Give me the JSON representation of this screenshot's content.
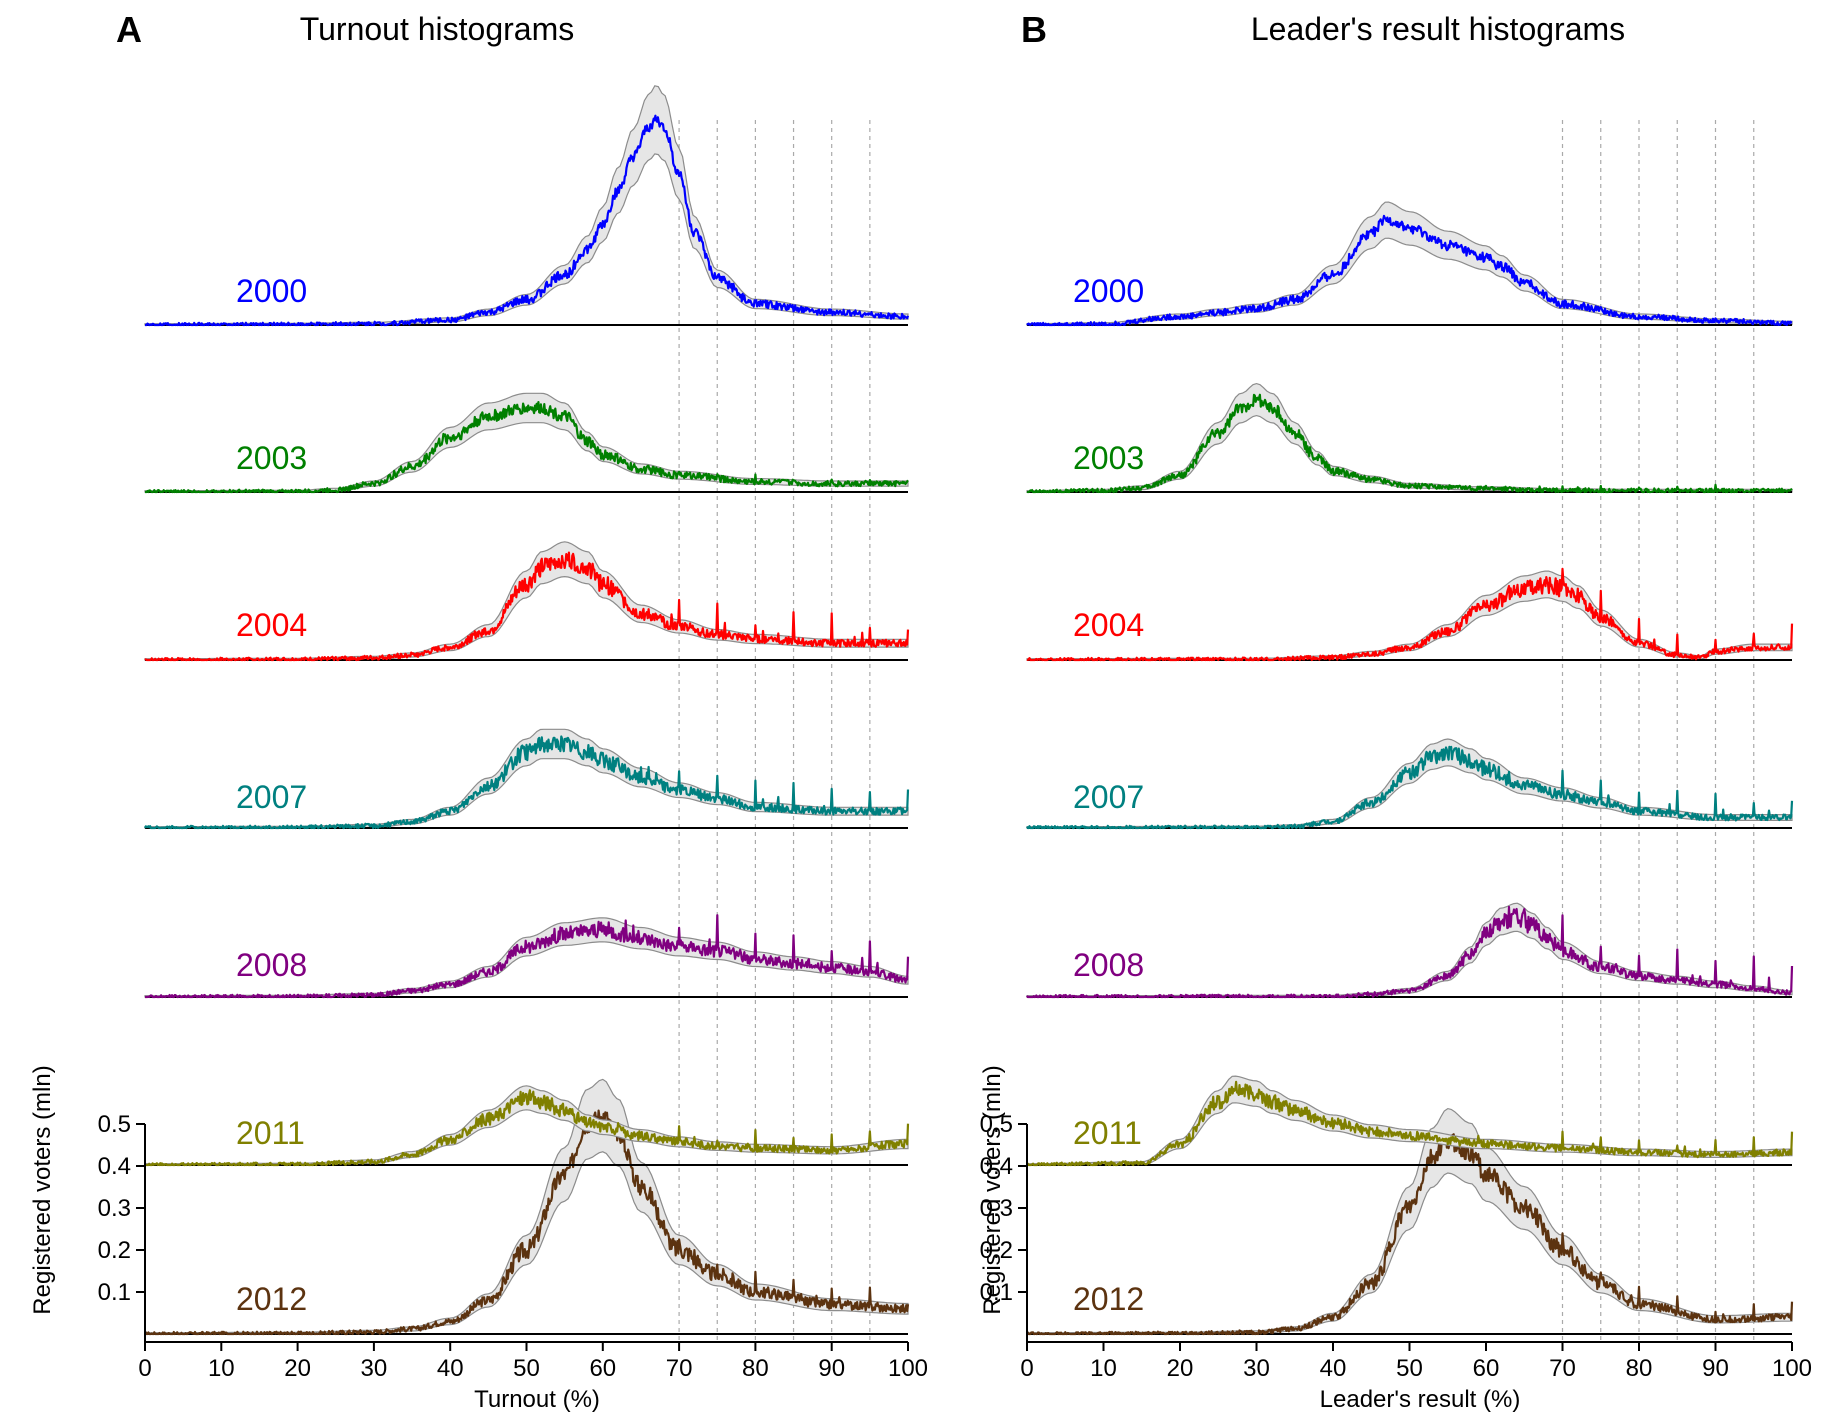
{
  "panels": [
    {
      "id": "A",
      "letter": "A",
      "title": "Turnout histograms",
      "xlabel": "Turnout (%)"
    },
    {
      "id": "B",
      "letter": "B",
      "title": "Leader's result histograms",
      "xlabel": "Leader's result (%)"
    }
  ],
  "ylabel": "Registered voters (mln)",
  "colors": {
    "2000": "#0000ff",
    "2003": "#008000",
    "2004": "#ff0000",
    "2007": "#008080",
    "2008": "#800080",
    "2011": "#808000",
    "2012": "#5c3310",
    "band_fill": "#e6e6e6",
    "band_edge": "#8c8c8c"
  },
  "chart_data": [
    {
      "type": "line",
      "panel": "A",
      "title": "Turnout histograms",
      "xlabel": "Turnout (%)",
      "ylabel": "Registered voters (mln)",
      "xlim": [
        0,
        100
      ],
      "x_ticks": [
        0,
        10,
        20,
        30,
        40,
        50,
        60,
        70,
        80,
        90,
        100
      ],
      "y_ticks": [
        0.1,
        0.2,
        0.3,
        0.4,
        0.5
      ],
      "ylim": [
        0,
        0.5
      ],
      "reference_lines_x": [
        70,
        75,
        80,
        85,
        90,
        95
      ],
      "series_layout": "stacked (each year offset vertically; y-axis applies to 2012)",
      "series": [
        {
          "name": "2000",
          "color": "#0000ff",
          "x": [
            0,
            20,
            30,
            40,
            45,
            50,
            55,
            58,
            60,
            62,
            64,
            66,
            67,
            68,
            70,
            72,
            75,
            80,
            90,
            100
          ],
          "y": [
            0,
            0.001,
            0.003,
            0.012,
            0.03,
            0.06,
            0.12,
            0.18,
            0.24,
            0.32,
            0.4,
            0.47,
            0.49,
            0.47,
            0.36,
            0.22,
            0.11,
            0.05,
            0.03,
            0.02
          ]
        },
        {
          "name": "2003",
          "color": "#008000",
          "x": [
            0,
            20,
            25,
            30,
            35,
            40,
            45,
            50,
            52,
            55,
            58,
            60,
            65,
            70,
            80,
            90,
            100
          ],
          "y": [
            0,
            0.001,
            0.005,
            0.02,
            0.06,
            0.13,
            0.18,
            0.2,
            0.2,
            0.18,
            0.12,
            0.09,
            0.055,
            0.04,
            0.025,
            0.02,
            0.02
          ]
        },
        {
          "name": "2004",
          "color": "#ff0000",
          "x": [
            0,
            20,
            30,
            35,
            40,
            45,
            50,
            52,
            55,
            58,
            60,
            65,
            70,
            75,
            80,
            90,
            100
          ],
          "y": [
            0,
            0.001,
            0.005,
            0.012,
            0.03,
            0.07,
            0.18,
            0.22,
            0.24,
            0.22,
            0.18,
            0.11,
            0.08,
            0.06,
            0.05,
            0.04,
            0.04
          ]
        },
        {
          "name": "2007",
          "color": "#008080",
          "x": [
            0,
            20,
            30,
            35,
            40,
            45,
            50,
            52,
            55,
            58,
            60,
            65,
            70,
            75,
            80,
            90,
            100
          ],
          "y": [
            0,
            0.001,
            0.005,
            0.015,
            0.04,
            0.1,
            0.18,
            0.2,
            0.2,
            0.18,
            0.16,
            0.12,
            0.09,
            0.07,
            0.05,
            0.04,
            0.04
          ]
        },
        {
          "name": "2008",
          "color": "#800080",
          "x": [
            0,
            20,
            30,
            35,
            40,
            45,
            50,
            55,
            60,
            65,
            70,
            75,
            80,
            85,
            90,
            95,
            100
          ],
          "y": [
            0,
            0.001,
            0.005,
            0.015,
            0.03,
            0.06,
            0.12,
            0.15,
            0.16,
            0.14,
            0.12,
            0.11,
            0.09,
            0.08,
            0.07,
            0.06,
            0.04
          ]
        },
        {
          "name": "2011",
          "color": "#808000",
          "x": [
            0,
            20,
            30,
            35,
            40,
            45,
            50,
            52,
            55,
            58,
            60,
            65,
            70,
            75,
            80,
            90,
            100
          ],
          "y": [
            0,
            0.001,
            0.008,
            0.025,
            0.06,
            0.11,
            0.16,
            0.15,
            0.13,
            0.1,
            0.09,
            0.07,
            0.055,
            0.045,
            0.04,
            0.035,
            0.05
          ]
        },
        {
          "name": "2012",
          "color": "#5c3310",
          "x": [
            0,
            20,
            30,
            35,
            40,
            45,
            50,
            55,
            58,
            60,
            62,
            65,
            70,
            75,
            80,
            90,
            100
          ],
          "y": [
            0,
            0.001,
            0.005,
            0.012,
            0.03,
            0.08,
            0.2,
            0.38,
            0.5,
            0.52,
            0.48,
            0.35,
            0.2,
            0.14,
            0.1,
            0.07,
            0.06
          ]
        }
      ]
    },
    {
      "type": "line",
      "panel": "B",
      "title": "Leader's result histograms",
      "xlabel": "Leader's result (%)",
      "ylabel": "Registered voters (mln)",
      "xlim": [
        0,
        100
      ],
      "x_ticks": [
        0,
        10,
        20,
        30,
        40,
        50,
        60,
        70,
        80,
        90,
        100
      ],
      "y_ticks": [
        0.1,
        0.2,
        0.3,
        0.4,
        0.5
      ],
      "ylim": [
        0,
        0.5
      ],
      "reference_lines_x": [
        70,
        75,
        80,
        85,
        90,
        95
      ],
      "series_layout": "stacked (each year offset vertically; y-axis applies to 2012)",
      "series": [
        {
          "name": "2000",
          "color": "#0000ff",
          "x": [
            0,
            10,
            20,
            25,
            30,
            35,
            40,
            45,
            47,
            50,
            55,
            60,
            62,
            65,
            70,
            80,
            90,
            100
          ],
          "y": [
            0,
            0.002,
            0.02,
            0.03,
            0.04,
            0.06,
            0.12,
            0.22,
            0.25,
            0.23,
            0.19,
            0.16,
            0.14,
            0.1,
            0.05,
            0.02,
            0.01,
            0.005
          ]
        },
        {
          "name": "2003",
          "color": "#008000",
          "x": [
            0,
            10,
            15,
            20,
            25,
            28,
            30,
            32,
            35,
            38,
            40,
            45,
            50,
            60,
            70,
            80,
            90,
            100
          ],
          "y": [
            0,
            0.003,
            0.01,
            0.04,
            0.14,
            0.2,
            0.22,
            0.2,
            0.14,
            0.08,
            0.05,
            0.03,
            0.015,
            0.008,
            0.004,
            0.003,
            0.003,
            0.003
          ]
        },
        {
          "name": "2004",
          "color": "#ff0000",
          "x": [
            0,
            30,
            40,
            45,
            50,
            55,
            60,
            65,
            68,
            70,
            72,
            75,
            80,
            85,
            88,
            90,
            95,
            100
          ],
          "y": [
            0,
            0.001,
            0.006,
            0.015,
            0.03,
            0.07,
            0.13,
            0.17,
            0.18,
            0.17,
            0.15,
            0.1,
            0.04,
            0.012,
            0.006,
            0.02,
            0.03,
            0.03
          ]
        },
        {
          "name": "2007",
          "color": "#008080",
          "x": [
            0,
            30,
            35,
            40,
            45,
            50,
            53,
            55,
            58,
            60,
            65,
            70,
            75,
            80,
            90,
            100
          ],
          "y": [
            0,
            0.001,
            0.004,
            0.015,
            0.06,
            0.13,
            0.17,
            0.18,
            0.16,
            0.14,
            0.1,
            0.08,
            0.06,
            0.04,
            0.025,
            0.025
          ]
        },
        {
          "name": "2008",
          "color": "#800080",
          "x": [
            0,
            40,
            45,
            50,
            55,
            58,
            60,
            62,
            64,
            66,
            68,
            70,
            75,
            80,
            85,
            90,
            95,
            100
          ],
          "y": [
            0,
            0.001,
            0.006,
            0.015,
            0.05,
            0.1,
            0.15,
            0.18,
            0.19,
            0.17,
            0.14,
            0.11,
            0.07,
            0.05,
            0.04,
            0.03,
            0.02,
            0.01
          ]
        },
        {
          "name": "2011",
          "color": "#808000",
          "x": [
            0,
            15,
            20,
            25,
            27,
            30,
            32,
            35,
            40,
            45,
            50,
            60,
            70,
            80,
            90,
            100
          ],
          "y": [
            0,
            0.004,
            0.05,
            0.15,
            0.18,
            0.17,
            0.15,
            0.13,
            0.1,
            0.08,
            0.07,
            0.05,
            0.04,
            0.03,
            0.025,
            0.03
          ]
        },
        {
          "name": "2012",
          "color": "#5c3310",
          "x": [
            0,
            20,
            30,
            35,
            40,
            45,
            50,
            53,
            55,
            58,
            60,
            65,
            70,
            75,
            80,
            90,
            100
          ],
          "y": [
            0,
            0.001,
            0.004,
            0.012,
            0.04,
            0.12,
            0.3,
            0.42,
            0.46,
            0.43,
            0.38,
            0.3,
            0.2,
            0.12,
            0.07,
            0.035,
            0.04
          ]
        }
      ]
    }
  ]
}
